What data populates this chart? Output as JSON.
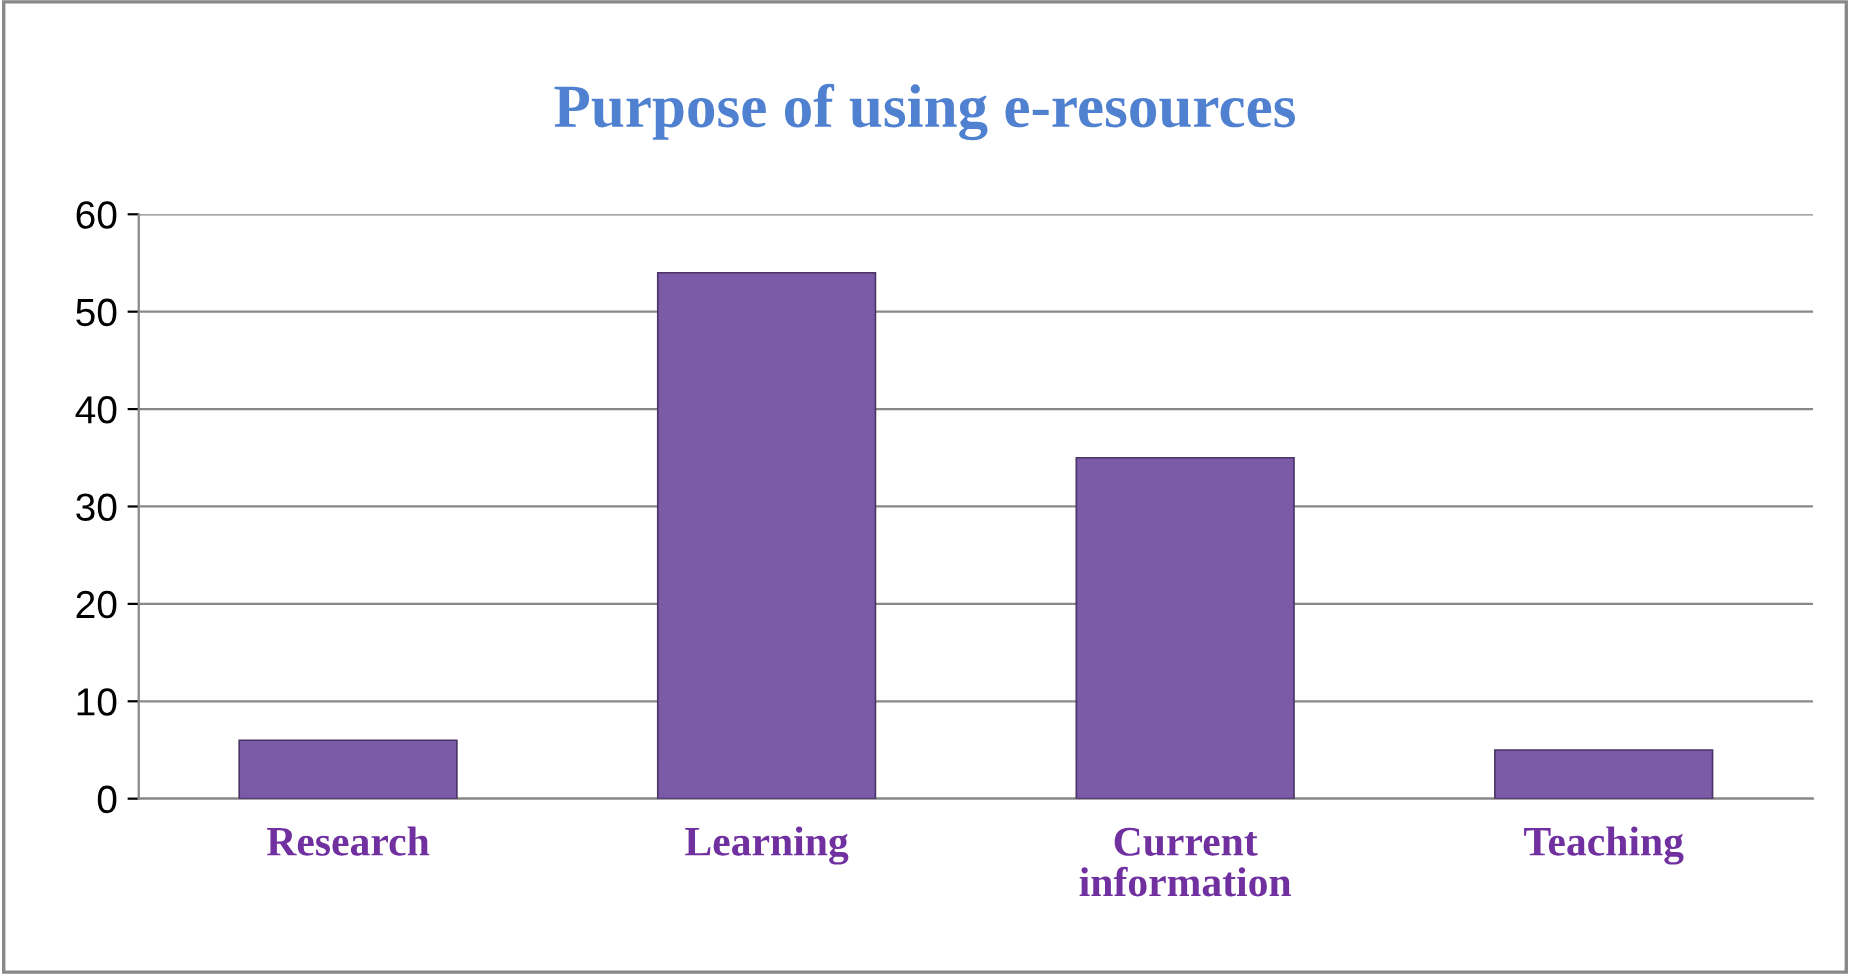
{
  "chart_data": {
    "type": "bar",
    "title": "Purpose of using e-resources",
    "categories": [
      "Research",
      "Learning",
      "Current\ninformation",
      "Teaching"
    ],
    "values": [
      6,
      54,
      35,
      5
    ],
    "color": "#7b5aa8",
    "ylim": [
      0,
      60
    ],
    "yticks": [
      0,
      10,
      20,
      30,
      40,
      50,
      60
    ],
    "grid": "y",
    "legend": false
  }
}
